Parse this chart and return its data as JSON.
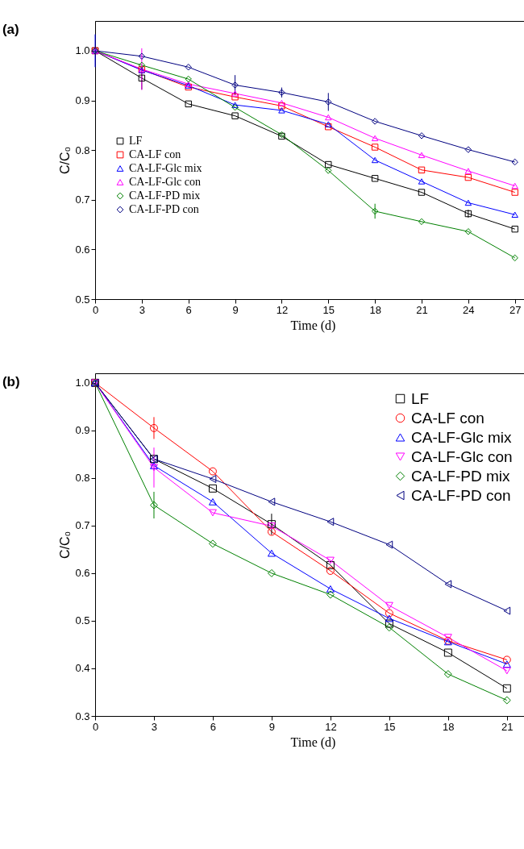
{
  "chart_data": [
    {
      "type": "line",
      "title": "(a)",
      "xlabel": "Time (d)",
      "ylabel": "C/C₀",
      "x": [
        0,
        3,
        6,
        9,
        12,
        15,
        18,
        21,
        24,
        27
      ],
      "xlim": [
        0,
        28
      ],
      "ylim": [
        0.5,
        1.06
      ],
      "xticks": [
        0,
        3,
        6,
        9,
        12,
        15,
        18,
        21,
        24,
        27
      ],
      "yticks": [
        0.5,
        0.6,
        0.7,
        0.8,
        0.9,
        {
          "value": 1,
          "label": "1.0"
        }
      ],
      "grid": false,
      "legend": "left",
      "series": [
        {
          "name": "LF",
          "color": "#000000",
          "marker": "square",
          "values": [
            1.0,
            0.945,
            0.893,
            0.869,
            0.828,
            0.771,
            0.743,
            0.715,
            0.672,
            0.641
          ],
          "errors": [
            null,
            0.023,
            null,
            null,
            null,
            null,
            null,
            null,
            0.008,
            null
          ]
        },
        {
          "name": "CA-LF con",
          "color": "#ff0000",
          "marker": "square",
          "values": [
            1.0,
            0.962,
            0.927,
            0.907,
            0.889,
            0.847,
            0.806,
            0.76,
            0.745,
            0.715
          ]
        },
        {
          "name": "CA-LF-Glc mix",
          "color": "#0000ff",
          "marker": "triangle",
          "values": [
            1.0,
            0.961,
            0.93,
            0.891,
            0.88,
            0.852,
            0.78,
            0.737,
            0.694,
            0.67
          ],
          "errors": [
            0.033,
            null,
            null,
            null,
            null,
            null,
            null,
            null,
            null,
            null
          ]
        },
        {
          "name": "CA-LF-Glc con",
          "color": "#ff00ff",
          "marker": "triangle",
          "values": [
            1.0,
            0.963,
            0.933,
            0.914,
            0.895,
            0.866,
            0.824,
            0.79,
            0.758,
            0.728
          ],
          "errors": [
            null,
            0.042,
            null,
            null,
            null,
            null,
            null,
            null,
            null,
            null
          ]
        },
        {
          "name": "CA-LF-PD mix",
          "color": "#008000",
          "marker": "diamond",
          "values": [
            1.0,
            0.971,
            0.943,
            0.886,
            0.831,
            0.759,
            0.677,
            0.656,
            0.636,
            0.583
          ],
          "errors": [
            null,
            null,
            null,
            null,
            null,
            null,
            0.015,
            null,
            null,
            null
          ]
        },
        {
          "name": "CA-LF-PD con",
          "color": "#000080",
          "marker": "diamond",
          "values": [
            1.0,
            0.989,
            0.967,
            0.931,
            0.916,
            0.897,
            0.858,
            0.829,
            0.801,
            0.776
          ],
          "errors": [
            null,
            null,
            null,
            0.02,
            0.01,
            0.018,
            null,
            null,
            null,
            null
          ]
        }
      ]
    },
    {
      "type": "line",
      "title": "(b)",
      "xlabel": "Time (d)",
      "ylabel": "C/C₀",
      "x": [
        0,
        3,
        6,
        9,
        12,
        15,
        18,
        21
      ],
      "xlim": [
        0,
        22.2
      ],
      "ylim": [
        0.3,
        1.02
      ],
      "xticks": [
        0,
        3,
        6,
        9,
        12,
        15,
        18,
        21
      ],
      "yticks": [
        0.3,
        0.4,
        0.5,
        0.6,
        0.7,
        0.8,
        0.9,
        {
          "value": 1,
          "label": "1.0"
        }
      ],
      "grid": false,
      "legend": "top right",
      "series": [
        {
          "name": "LF",
          "color": "#000000",
          "marker": "square",
          "values": [
            1.0,
            0.84,
            0.778,
            0.703,
            0.617,
            0.494,
            0.433,
            0.358
          ],
          "errors": [
            null,
            null,
            null,
            0.022,
            null,
            null,
            null,
            null
          ]
        },
        {
          "name": "CA-LF con",
          "color": "#ff0000",
          "marker": "circle",
          "values": [
            1.0,
            0.905,
            0.814,
            0.687,
            0.605,
            0.516,
            0.458,
            0.418
          ],
          "errors": [
            null,
            0.023,
            null,
            null,
            null,
            null,
            null,
            null
          ]
        },
        {
          "name": "CA-LF-Glc mix",
          "color": "#0000ff",
          "marker": "triangle",
          "values": [
            1.0,
            0.826,
            0.75,
            0.642,
            0.567,
            0.505,
            0.456,
            0.409
          ]
        },
        {
          "name": "CA-LF-Glc con",
          "color": "#ff00ff",
          "marker": "triangle-down",
          "values": [
            1.0,
            0.822,
            0.727,
            0.699,
            0.627,
            0.532,
            0.465,
            0.395
          ],
          "errors": [
            null,
            0.042,
            null,
            null,
            null,
            null,
            null,
            null
          ]
        },
        {
          "name": "CA-LF-PD mix",
          "color": "#008000",
          "marker": "diamond",
          "values": [
            1.0,
            0.743,
            0.662,
            0.6,
            0.555,
            0.486,
            0.388,
            0.333
          ],
          "errors": [
            null,
            0.028,
            null,
            null,
            null,
            null,
            null,
            null
          ]
        },
        {
          "name": "CA-LF-PD con",
          "color": "#000080",
          "marker": "triangle-left",
          "values": [
            1.0,
            0.84,
            0.798,
            0.75,
            0.708,
            0.66,
            0.577,
            0.521
          ]
        }
      ]
    }
  ]
}
